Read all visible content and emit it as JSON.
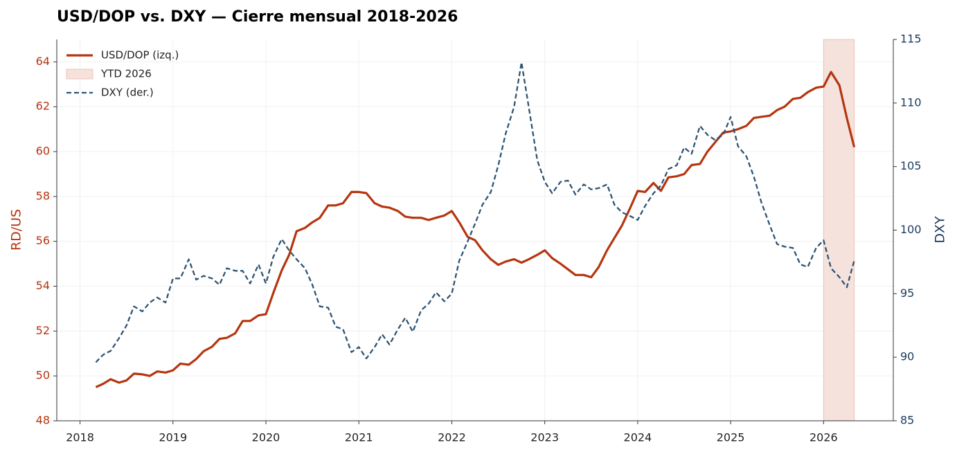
{
  "chart_data": {
    "type": "line",
    "title": "USD/DOP vs. DXY — Cierre mensual 2018-2026",
    "y_label": "RD/US",
    "y2_label": "DXY",
    "xlim": [
      2017.75,
      2026.75
    ],
    "xticks": [
      2018,
      2019,
      2020,
      2021,
      2022,
      2023,
      2024,
      2025,
      2026
    ],
    "ylim": [
      48,
      65
    ],
    "yticks": [
      48,
      50,
      52,
      54,
      56,
      58,
      60,
      62,
      64
    ],
    "y2lim": [
      85,
      115
    ],
    "y2ticks": [
      85,
      90,
      95,
      100,
      105,
      110,
      115
    ],
    "grid": true,
    "legend": "upper left",
    "shade": {
      "name": "YTD 2026",
      "x": [
        2026,
        2026.33
      ],
      "color": "#f5e2dc"
    },
    "x": [
      2018.17,
      2018.25,
      2018.33,
      2018.42,
      2018.5,
      2018.58,
      2018.67,
      2018.75,
      2018.83,
      2018.92,
      2019.0,
      2019.08,
      2019.17,
      2019.25,
      2019.33,
      2019.42,
      2019.5,
      2019.58,
      2019.67,
      2019.75,
      2019.83,
      2019.92,
      2020.0,
      2020.08,
      2020.17,
      2020.25,
      2020.33,
      2020.42,
      2020.5,
      2020.58,
      2020.67,
      2020.75,
      2020.83,
      2020.92,
      2021.0,
      2021.08,
      2021.17,
      2021.25,
      2021.33,
      2021.42,
      2021.5,
      2021.58,
      2021.67,
      2021.75,
      2021.83,
      2021.92,
      2022.0,
      2022.08,
      2022.17,
      2022.25,
      2022.33,
      2022.42,
      2022.5,
      2022.58,
      2022.67,
      2022.75,
      2022.83,
      2022.92,
      2023.0,
      2023.08,
      2023.17,
      2023.25,
      2023.33,
      2023.42,
      2023.5,
      2023.58,
      2023.67,
      2023.75,
      2023.83,
      2023.92,
      2024.0,
      2024.08,
      2024.17,
      2024.25,
      2024.33,
      2024.42,
      2024.5,
      2024.58,
      2024.67,
      2024.75,
      2024.83,
      2024.92,
      2025.0,
      2025.08,
      2025.17,
      2025.25,
      2025.33,
      2025.42,
      2025.5,
      2025.58,
      2025.67,
      2025.75,
      2025.83,
      2025.92,
      2026.0,
      2026.08,
      2026.17,
      2026.25,
      2026.33
    ],
    "series": [
      {
        "name": "USD/DOP (izq.)",
        "color": "#b5350f",
        "axis": "y",
        "values": [
          49.5,
          49.65,
          49.85,
          49.7,
          49.8,
          50.1,
          50.07,
          50.0,
          50.2,
          50.15,
          50.25,
          50.55,
          50.5,
          50.75,
          51.1,
          51.3,
          51.65,
          51.7,
          51.9,
          52.45,
          52.45,
          52.7,
          52.75,
          53.7,
          54.7,
          55.4,
          56.45,
          56.6,
          56.85,
          57.05,
          57.6,
          57.6,
          57.7,
          58.2,
          58.2,
          58.15,
          57.7,
          57.55,
          57.5,
          57.35,
          57.1,
          57.05,
          57.05,
          56.95,
          57.05,
          57.15,
          57.35,
          56.85,
          56.2,
          56.05,
          55.6,
          55.2,
          54.95,
          55.1,
          55.2,
          55.05,
          55.2,
          55.4,
          55.6,
          55.25,
          55.0,
          54.75,
          54.5,
          54.5,
          54.4,
          54.85,
          55.6,
          56.15,
          56.7,
          57.5,
          58.25,
          58.2,
          58.6,
          58.25,
          58.85,
          58.9,
          59.0,
          59.4,
          59.45,
          60.0,
          60.4,
          60.85,
          60.9,
          61.0,
          61.15,
          61.5,
          61.55,
          61.6,
          61.85,
          62.0,
          62.35,
          62.4,
          62.65,
          62.85,
          62.9,
          63.55,
          62.95,
          61.5,
          60.2
        ]
      },
      {
        "name": "DXY (der.)",
        "color": "#2e5373",
        "axis": "y2",
        "values": [
          89.6,
          90.2,
          90.5,
          91.5,
          92.5,
          94.0,
          93.6,
          94.3,
          94.7,
          94.3,
          96.2,
          96.2,
          97.7,
          96.1,
          96.4,
          96.2,
          95.7,
          97.0,
          96.8,
          96.8,
          95.8,
          97.3,
          95.8,
          97.9,
          99.3,
          98.4,
          97.7,
          97.0,
          95.7,
          94.0,
          93.9,
          92.4,
          92.2,
          90.4,
          90.8,
          89.9,
          90.8,
          91.8,
          91.0,
          92.2,
          93.1,
          92.0,
          93.7,
          94.2,
          95.1,
          94.4,
          95.0,
          97.6,
          99.1,
          100.5,
          102.0,
          103.0,
          105.1,
          107.6,
          109.7,
          113.2,
          109.6,
          105.5,
          103.8,
          102.9,
          103.8,
          103.9,
          102.8,
          103.6,
          103.2,
          103.3,
          103.6,
          102.0,
          101.4,
          101.1,
          100.8,
          101.9,
          102.9,
          103.5,
          104.8,
          105.1,
          106.5,
          106.0,
          108.2,
          107.5,
          107.1,
          107.5,
          108.9,
          106.6,
          105.8,
          104.2,
          102.2,
          100.4,
          98.9,
          98.7,
          98.6,
          97.3,
          97.1,
          98.6,
          99.2,
          97.0,
          96.3,
          95.5,
          97.6
        ]
      }
    ]
  }
}
